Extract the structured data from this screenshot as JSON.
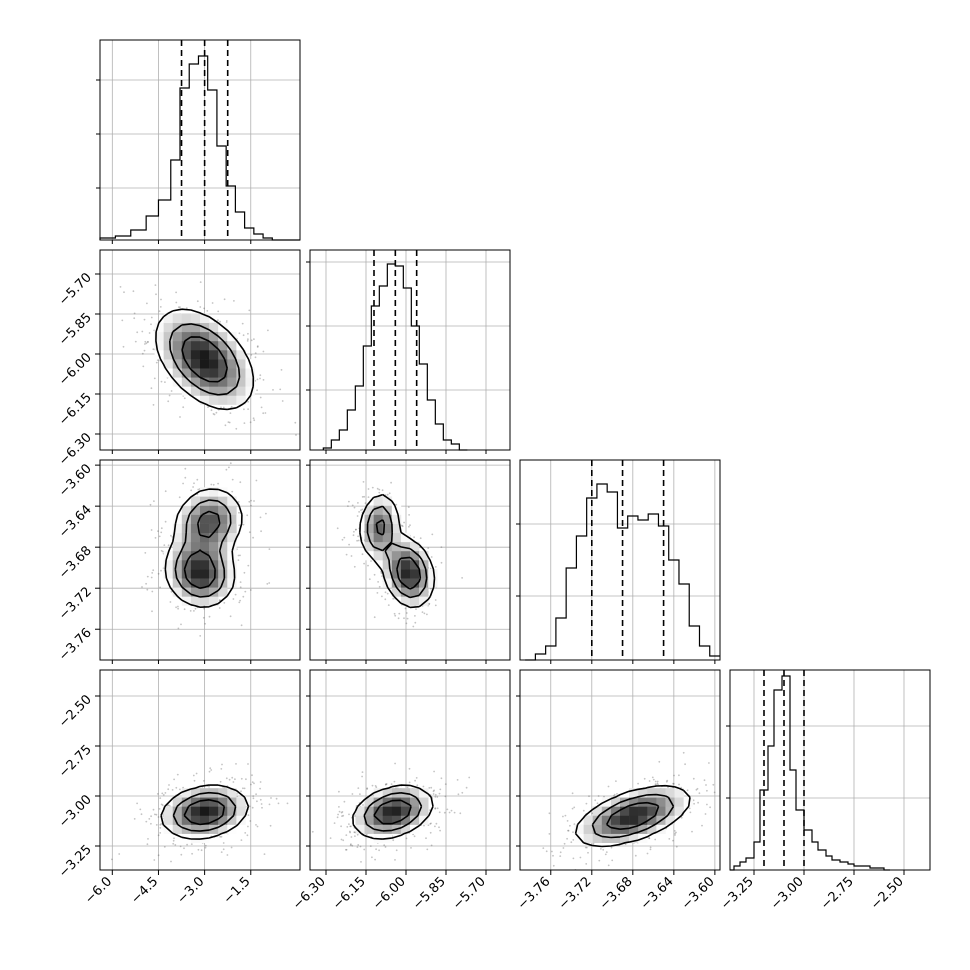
{
  "chart_data": {
    "type": "corner",
    "n_params": 4,
    "grid": true,
    "params": [
      {
        "index": 0,
        "range": [
          -6.4,
          0.1
        ],
        "ticks": [
          -6.0,
          -4.5,
          -3.0,
          -1.5
        ],
        "tick_labels": [
          "−6.0",
          "−4.5",
          "−3.0",
          "−1.5"
        ],
        "quantiles": [
          -3.75,
          -3.0,
          -2.25
        ],
        "hist_bins": [
          -6.4,
          -5.9,
          -5.4,
          -4.9,
          -4.5,
          -4.1,
          -3.8,
          -3.5,
          -3.2,
          -2.9,
          -2.6,
          -2.3,
          -2.0,
          -1.7,
          -1.4,
          -1.1,
          -0.8,
          -0.4,
          0.1
        ],
        "hist_counts": [
          0.01,
          0.02,
          0.05,
          0.12,
          0.2,
          0.4,
          0.76,
          0.88,
          0.92,
          0.75,
          0.47,
          0.27,
          0.14,
          0.06,
          0.03,
          0.01,
          0.0,
          0.0
        ],
        "hist_yticks": [
          0.26,
          0.53,
          0.8
        ],
        "hist_ymax": 1.0
      },
      {
        "index": 1,
        "range": [
          -6.36,
          -5.61
        ],
        "ticks": [
          -6.3,
          -6.15,
          -6.0,
          -5.85,
          -5.7
        ],
        "tick_labels": [
          "−6.30",
          "−6.15",
          "−6.00",
          "−5.85",
          "−5.70"
        ],
        "quantiles": [
          -6.12,
          -6.04,
          -5.96
        ],
        "hist_bins": [
          -6.31,
          -6.28,
          -6.25,
          -6.22,
          -6.19,
          -6.16,
          -6.13,
          -6.1,
          -6.07,
          -6.04,
          -6.01,
          -5.98,
          -5.95,
          -5.92,
          -5.89,
          -5.86,
          -5.83,
          -5.8,
          -5.77
        ],
        "hist_counts": [
          0.01,
          0.05,
          0.1,
          0.2,
          0.32,
          0.52,
          0.72,
          0.82,
          0.93,
          0.92,
          0.81,
          0.62,
          0.43,
          0.25,
          0.13,
          0.05,
          0.03,
          0.0
        ],
        "hist_yticks": [
          0.3,
          0.62,
          0.94
        ],
        "hist_ymax": 1.0
      },
      {
        "index": 2,
        "range": [
          -3.79,
          -3.595
        ],
        "ticks": [
          -3.76,
          -3.72,
          -3.68,
          -3.64,
          -3.6
        ],
        "tick_labels": [
          "−3.76",
          "−3.72",
          "−3.68",
          "−3.64",
          "−3.60"
        ],
        "quantiles": [
          -3.72,
          -3.69,
          -3.65
        ],
        "hist_bins": [
          -3.785,
          -3.775,
          -3.765,
          -3.755,
          -3.745,
          -3.735,
          -3.725,
          -3.715,
          -3.705,
          -3.695,
          -3.685,
          -3.675,
          -3.665,
          -3.655,
          -3.645,
          -3.635,
          -3.625,
          -3.615,
          -3.605,
          -3.595
        ],
        "hist_counts": [
          0.0,
          0.03,
          0.07,
          0.21,
          0.46,
          0.62,
          0.81,
          0.88,
          0.84,
          0.66,
          0.72,
          0.7,
          0.73,
          0.67,
          0.5,
          0.38,
          0.17,
          0.07,
          0.02
        ],
        "hist_yticks": [
          0.32,
          0.68
        ],
        "hist_ymax": 1.0
      },
      {
        "index": 3,
        "range": [
          -3.37,
          -2.37
        ],
        "ticks": [
          -3.25,
          -3.0,
          -2.75,
          -2.5
        ],
        "tick_labels": [
          "−3.25",
          "−3.00",
          "−2.75",
          "−2.50"
        ],
        "quantiles": [
          -3.2,
          -3.1,
          -3.0
        ],
        "hist_bins": [
          -3.37,
          -3.35,
          -3.32,
          -3.29,
          -3.25,
          -3.22,
          -3.18,
          -3.15,
          -3.11,
          -3.07,
          -3.04,
          -3.0,
          -2.96,
          -2.93,
          -2.89,
          -2.86,
          -2.82,
          -2.78,
          -2.75,
          -2.71,
          -2.67,
          -2.64,
          -2.6,
          -2.57
        ],
        "hist_counts": [
          0.0,
          0.02,
          0.04,
          0.06,
          0.14,
          0.4,
          0.62,
          0.9,
          0.97,
          0.5,
          0.3,
          0.2,
          0.14,
          0.1,
          0.07,
          0.05,
          0.04,
          0.03,
          0.02,
          0.02,
          0.01,
          0.01,
          0.0
        ],
        "hist_yticks": [
          0.36,
          0.72
        ],
        "hist_ymax": 1.0
      }
    ],
    "pairs": [
      {
        "x": 0,
        "y": 1,
        "modes": [
          {
            "mx": -3.0,
            "my": -6.02,
            "sx": 0.85,
            "sy": 0.1,
            "rho": -0.45,
            "w": 1.0
          }
        ]
      },
      {
        "x": 0,
        "y": 2,
        "modes": [
          {
            "mx": -3.15,
            "my": -3.705,
            "sx": 0.6,
            "sy": 0.018,
            "rho": -0.1,
            "w": 0.6
          },
          {
            "mx": -2.85,
            "my": -3.655,
            "sx": 0.6,
            "sy": 0.018,
            "rho": 0.1,
            "w": 0.5
          }
        ]
      },
      {
        "x": 1,
        "y": 2,
        "modes": [
          {
            "mx": -6.1,
            "my": -3.66,
            "sx": 0.04,
            "sy": 0.018,
            "rho": 0.1,
            "w": 0.5
          },
          {
            "mx": -5.99,
            "my": -3.705,
            "sx": 0.05,
            "sy": 0.018,
            "rho": -0.2,
            "w": 0.65
          }
        ]
      },
      {
        "x": 0,
        "y": 3,
        "modes": [
          {
            "mx": -3.0,
            "my": -3.08,
            "sx": 0.75,
            "sy": 0.07,
            "rho": 0.2,
            "w": 1.0
          }
        ]
      },
      {
        "x": 1,
        "y": 3,
        "modes": [
          {
            "mx": -6.05,
            "my": -3.08,
            "sx": 0.08,
            "sy": 0.07,
            "rho": 0.3,
            "w": 1.0
          }
        ]
      },
      {
        "x": 2,
        "y": 3,
        "modes": [
          {
            "mx": -3.68,
            "my": -3.1,
            "sx": 0.03,
            "sy": 0.08,
            "rho": 0.55,
            "w": 1.0
          }
        ]
      }
    ]
  }
}
